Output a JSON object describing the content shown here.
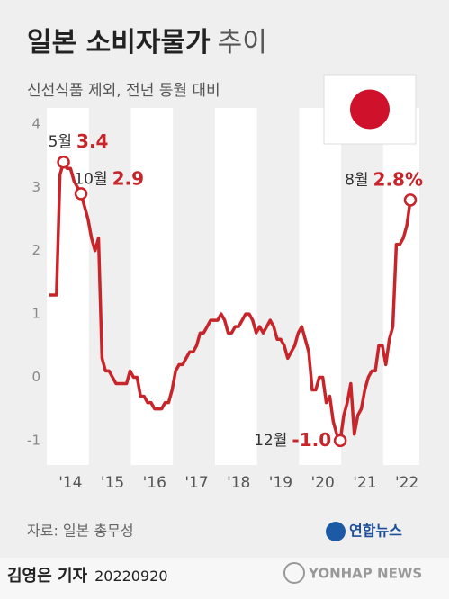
{
  "chart_data": {
    "type": "line",
    "title": "일본 소비자물가",
    "title_suffix": "추이",
    "subtitle": "신선식품 제외, 전년 동월 대비",
    "categories": [
      null,
      null,
      null,
      null,
      null,
      null,
      "'14",
      null,
      null,
      null,
      null,
      null,
      null,
      null,
      null,
      null,
      null,
      null,
      "'15",
      null,
      null,
      null,
      null,
      null,
      null,
      null,
      null,
      null,
      null,
      null,
      "'16",
      null,
      null,
      null,
      null,
      null,
      null,
      null,
      null,
      null,
      null,
      null,
      "'17",
      null,
      null,
      null,
      null,
      null,
      null,
      null,
      null,
      null,
      null,
      null,
      "'18",
      null,
      null,
      null,
      null,
      null,
      null,
      null,
      null,
      null,
      null,
      null,
      "'19",
      null,
      null,
      null,
      null,
      null,
      null,
      null,
      null,
      null,
      null,
      null,
      "'20",
      null,
      null,
      null,
      null,
      null,
      null,
      null,
      null,
      null,
      null,
      null,
      "'21",
      null,
      null,
      null,
      null,
      null,
      null,
      null,
      null,
      null,
      null,
      null,
      "'22",
      null
    ],
    "series": [
      {
        "name": "소비자물가",
        "color": "#c8252b",
        "values": [
          1.3,
          1.3,
          1.3,
          3.2,
          3.4,
          3.3,
          3.3,
          3.1,
          3.0,
          2.9,
          2.7,
          2.5,
          2.2,
          2.0,
          2.2,
          0.3,
          0.1,
          0.1,
          0.0,
          -0.1,
          -0.1,
          -0.1,
          -0.1,
          0.1,
          0.0,
          0.0,
          -0.3,
          -0.3,
          -0.4,
          -0.4,
          -0.5,
          -0.5,
          -0.5,
          -0.4,
          -0.4,
          -0.2,
          0.1,
          0.2,
          0.2,
          0.3,
          0.4,
          0.4,
          0.5,
          0.7,
          0.7,
          0.8,
          0.9,
          0.9,
          0.9,
          1.0,
          0.9,
          0.7,
          0.7,
          0.8,
          0.8,
          0.9,
          1.0,
          1.0,
          0.9,
          0.7,
          0.8,
          0.7,
          0.8,
          0.9,
          0.8,
          0.6,
          0.6,
          0.5,
          0.3,
          0.4,
          0.5,
          0.7,
          0.8,
          0.6,
          0.4,
          -0.2,
          -0.2,
          0.0,
          0.0,
          -0.4,
          -0.3,
          -0.7,
          -0.9,
          -1.0,
          -0.6,
          -0.4,
          -0.1,
          -0.9,
          -0.6,
          -0.5,
          -0.2,
          0.0,
          0.1,
          0.1,
          0.5,
          0.5,
          0.2,
          0.6,
          0.8,
          2.1,
          2.1,
          2.2,
          2.4,
          2.8
        ],
        "value_labels": [
          null,
          null,
          null,
          null,
          "3.4",
          null,
          null,
          null,
          null,
          "2.9",
          null,
          null,
          null,
          null,
          null,
          null,
          null,
          null,
          null,
          null,
          null,
          null,
          null,
          null,
          null,
          null,
          null,
          null,
          null,
          null,
          null,
          null,
          null,
          null,
          null,
          null,
          null,
          null,
          null,
          null,
          null,
          null,
          null,
          null,
          null,
          null,
          null,
          null,
          null,
          null,
          null,
          null,
          null,
          null,
          null,
          null,
          null,
          null,
          null,
          null,
          null,
          null,
          null,
          null,
          null,
          null,
          null,
          null,
          null,
          null,
          null,
          null,
          null,
          null,
          null,
          null,
          null,
          null,
          null,
          null,
          null,
          null,
          null,
          "-1.0",
          null,
          null,
          null,
          null,
          null,
          null,
          null,
          null,
          null,
          null,
          null,
          null,
          null,
          null,
          null,
          null,
          null,
          null,
          null,
          "2.8%"
        ],
        "value_label_months": [
          null,
          null,
          null,
          null,
          "5월",
          null,
          null,
          null,
          null,
          "10월",
          null,
          null,
          null,
          null,
          null,
          null,
          null,
          null,
          null,
          null,
          null,
          null,
          null,
          null,
          null,
          null,
          null,
          null,
          null,
          null,
          null,
          null,
          null,
          null,
          null,
          null,
          null,
          null,
          null,
          null,
          null,
          null,
          null,
          null,
          null,
          null,
          null,
          null,
          null,
          null,
          null,
          null,
          null,
          null,
          null,
          null,
          null,
          null,
          null,
          null,
          null,
          null,
          null,
          null,
          null,
          null,
          null,
          null,
          null,
          null,
          null,
          null,
          null,
          null,
          null,
          null,
          null,
          null,
          null,
          null,
          null,
          null,
          null,
          "12월",
          null,
          null,
          null,
          null,
          null,
          null,
          null,
          null,
          null,
          null,
          null,
          null,
          null,
          null,
          null,
          null,
          null,
          null,
          null,
          "8월"
        ]
      }
    ],
    "ylim": [
      -1.5,
      4
    ],
    "yticks": [
      4,
      3,
      2,
      1,
      0,
      -1
    ],
    "grid": false,
    "source": "자료: 일본 총무성",
    "logo": "연합뉴스",
    "byline": "김영은 기자",
    "date": "20220920",
    "footer_logo": "YONHAP NEWS"
  }
}
